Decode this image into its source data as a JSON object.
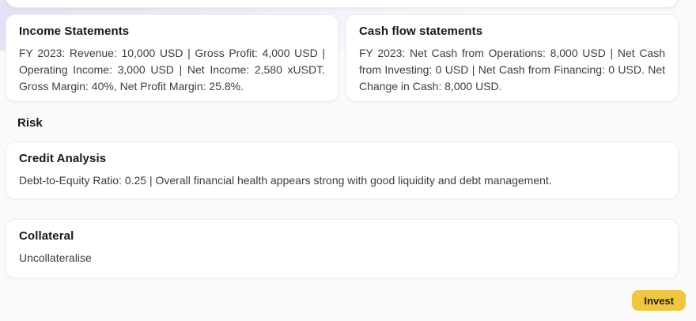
{
  "theme": {
    "page_background": "#fafafa",
    "gradient_lavender": "#e5e1f5",
    "card_background": "#ffffff",
    "card_border": "#ededf1",
    "heading_color": "#16161c",
    "body_text_color": "#3c3c44",
    "invest_button_color": "#f0c63e"
  },
  "cards": {
    "income": {
      "title": "Income Statements",
      "body": "FY 2023: Revenue: 10,000 USD | Gross Profit: 4,000 USD | Operating Income: 3,000 USD | Net Income: 2,580 xUSDT. Gross Margin: 40%, Net Profit Margin: 25.8%."
    },
    "cashflow": {
      "title": "Cash flow statements",
      "body": "FY 2023: Net Cash from Operations: 8,000 USD | Net Cash from Investing: 0 USD | Net Cash from Financing: 0 USD. Net Change in Cash: 8,000 USD."
    },
    "credit": {
      "title": "Credit Analysis",
      "body": "Debt-to-Equity Ratio: 0.25 | Overall financial health appears strong with good liquidity and debt management."
    },
    "collateral": {
      "title": "Collateral",
      "body": "Uncollateralise"
    }
  },
  "sections": {
    "risk_label": "Risk"
  },
  "actions": {
    "invest_label": "Invest"
  }
}
